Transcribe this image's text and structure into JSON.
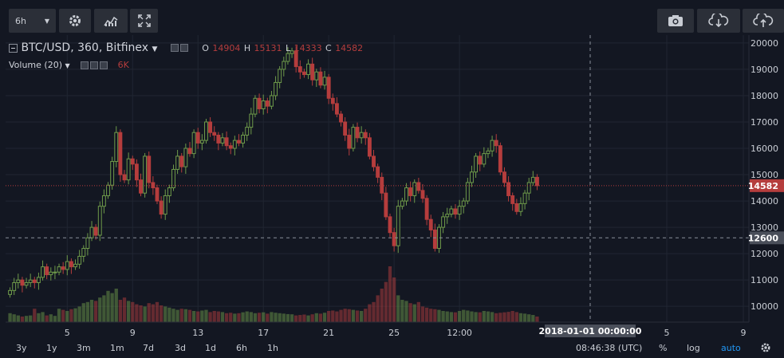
{
  "toolbar": {
    "interval_label": "6h"
  },
  "legend": {
    "symbol": "BTC/USD, 360, Bitfinex",
    "o_label": "O",
    "o_value": "14904",
    "h_label": "H",
    "h_value": "15131",
    "l_label": "L",
    "l_value": "14333",
    "c_label": "C",
    "c_value": "14582",
    "volume_label": "Volume (20)",
    "volume_value": "6K"
  },
  "bottom": {
    "ranges": [
      "3y",
      "1y",
      "3m",
      "1m",
      "7d",
      "3d",
      "1d",
      "6h",
      "1h"
    ],
    "time": "08:46:38 (UTC)",
    "percent": "%",
    "log": "log",
    "auto": "auto"
  },
  "colors": {
    "background": "#131722",
    "up": "#6e9a4a",
    "down": "#b53d3d",
    "grid": "#202632",
    "accent": "#2196f3"
  },
  "chart_data": {
    "type": "candlestick",
    "x_ticks": [
      "5",
      "9",
      "13",
      "17",
      "21",
      "25",
      "12:00",
      "5",
      "9"
    ],
    "y_ticks": [
      10000,
      11000,
      12000,
      13000,
      14000,
      15000,
      16000,
      17000,
      18000,
      19000,
      20000
    ],
    "ylim": [
      9400,
      20300
    ],
    "price_line": 14582,
    "crosshair_price": 12600,
    "crosshair_time": "2018-01-01 00:00:00",
    "close": [
      10600,
      10900,
      11000,
      10800,
      10900,
      11000,
      10900,
      11100,
      11500,
      11200,
      11300,
      11300,
      11500,
      11400,
      11700,
      11500,
      11600,
      11900,
      12200,
      12600,
      13000,
      12700,
      13800,
      14200,
      14600,
      15500,
      16600,
      15000,
      14800,
      15600,
      15400,
      14800,
      14300,
      15700,
      14700,
      14500,
      14000,
      13500,
      14200,
      14500,
      15200,
      15700,
      15300,
      16000,
      15800,
      16600,
      16200,
      16300,
      17000,
      16600,
      16500,
      16200,
      16400,
      16100,
      16000,
      16300,
      16200,
      16500,
      16800,
      17300,
      17900,
      17500,
      17800,
      17600,
      18000,
      18500,
      19000,
      19300,
      19600,
      19700,
      19100,
      18900,
      18800,
      19200,
      18600,
      18900,
      18400,
      18700,
      17900,
      17700,
      17300,
      17000,
      16500,
      16000,
      16800,
      16400,
      16600,
      16400,
      15700,
      15300,
      14900,
      14300,
      13400,
      12800,
      12300,
      13800,
      14000,
      14500,
      14200,
      14700,
      14400,
      14100,
      13300,
      12900,
      12200,
      13000,
      13400,
      13500,
      13700,
      13500,
      13800,
      14000,
      14700,
      15100,
      15700,
      15400,
      15800,
      15900,
      16300,
      16100,
      15100,
      14700,
      14200,
      13900,
      13600,
      13900,
      14300,
      14700,
      14900,
      14582
    ],
    "volume": [
      40,
      35,
      30,
      25,
      28,
      30,
      60,
      40,
      45,
      30,
      35,
      28,
      60,
      55,
      50,
      58,
      62,
      70,
      85,
      90,
      100,
      95,
      110,
      120,
      140,
      130,
      150,
      100,
      110,
      95,
      90,
      80,
      75,
      70,
      85,
      80,
      90,
      75,
      70,
      65,
      60,
      55,
      60,
      58,
      55,
      50,
      48,
      52,
      55,
      45,
      50,
      48,
      45,
      40,
      42,
      38,
      40,
      44,
      48,
      45,
      40,
      42,
      44,
      38,
      45,
      42,
      40,
      38,
      36,
      35,
      30,
      32,
      34,
      30,
      35,
      40,
      38,
      42,
      50,
      52,
      48,
      55,
      60,
      58,
      55,
      52,
      50,
      60,
      80,
      90,
      120,
      150,
      180,
      250,
      200,
      120,
      100,
      95,
      85,
      80,
      90,
      70,
      65,
      60,
      58,
      55,
      50,
      48,
      45,
      44,
      50,
      55,
      52,
      48,
      45,
      44,
      50,
      48,
      45,
      40,
      42,
      44,
      46,
      50,
      45,
      40,
      38,
      35,
      32,
      25
    ]
  }
}
